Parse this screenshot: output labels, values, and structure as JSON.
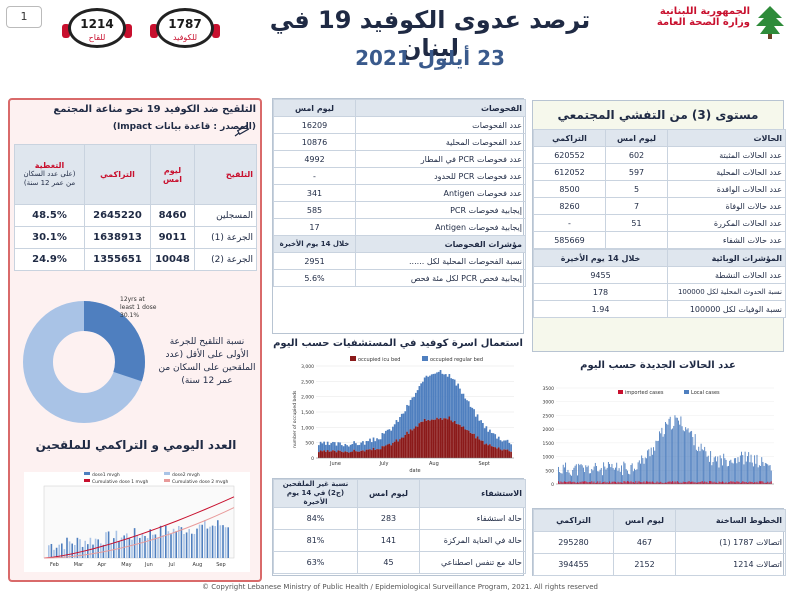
{
  "header": {
    "page_number": "1",
    "hotline_vaccine": {
      "number": "1214",
      "label": "للقاح"
    },
    "hotline_covid": {
      "number": "1787",
      "label": "للكوفيد"
    },
    "title": "ترصد عدوى الكوفيد 19 في لبنان",
    "date": "23 أيلول 2021",
    "ministry_line1": "الجمهورية اللبنانية",
    "ministry_line2": "وزارة الصحة العامة"
  },
  "vaccination": {
    "title": "التلقيح ضد الكوفيد 19  نحو مناعة المجتمع",
    "source": "(المصدر : قاعدة بيانات Impact)",
    "columns": [
      "التلقيح",
      "ليوم امس",
      "التراكمي",
      "التغطية"
    ],
    "coverage_note": "(على عدد السكان من عمر 12 سنة)",
    "rows": [
      {
        "label": "المسجلين",
        "yesterday": "8460",
        "cumulative": "2645220",
        "coverage": "48.5%"
      },
      {
        "label": "الجرعة (1)",
        "yesterday": "9011",
        "cumulative": "1638913",
        "coverage": "30.1%"
      },
      {
        "label": "الجرعة (2)",
        "yesterday": "10048",
        "cumulative": "1355651",
        "coverage": "24.9%"
      }
    ],
    "pie_label": "12yrs at least 1 dose 30.1%",
    "pie_caption": "نسبة التلقيح للجرعة الأولى على الأقل (عدد الملقحين على السكان من عمر 12 سنة)",
    "daily_title": "العدد اليومي و التراكمي للملقحين",
    "daily_legend": [
      "dose1 mvgh",
      "dose2 mvgh",
      "Cumulative dose 1 mvgh",
      "Cumulative dose 2 mvgh"
    ],
    "daily_months": [
      "Feb",
      "Mar",
      "Apr",
      "May",
      "Jun",
      "Jul",
      "Aug",
      "Sep"
    ]
  },
  "tests": {
    "col_label": "الفحوصات",
    "col_yesterday": "ليوم امس",
    "rows": [
      {
        "label": "عدد الفحوصات",
        "value": "16209"
      },
      {
        "label": "عدد الفحوصات المحلية",
        "value": "10876"
      },
      {
        "label": "عدد فحوصات PCR في المطار",
        "value": "4992"
      },
      {
        "label": "عدد فحوصات PCR للحدود",
        "value": "-"
      },
      {
        "label": "عدد فحوصات Antigen",
        "value": "341"
      },
      {
        "label": "إيجابية فحوصات PCR",
        "value": "585"
      },
      {
        "label": "إيجابية فحوصات Antigen",
        "value": "17"
      }
    ],
    "indicators_label": "مؤشرات الفحوصات",
    "indicators_period": "خلال 14 يوم الأخيرة",
    "indicators": [
      {
        "label": "نسبة الفحوصات  المحلية لكل ......",
        "value": "2951"
      },
      {
        "label": "إيجابية فحص PCR لكل مئة فحص",
        "value": "5.6%"
      }
    ]
  },
  "spread": {
    "title": "مستوى (3) من التفشي المجتمعي",
    "col_cases": "الحالات",
    "col_yesterday": "ليوم امس",
    "col_cumulative": "التراكمي",
    "rows": [
      {
        "label": "عدد الحالات المثبتة",
        "yesterday": "602",
        "cumulative": "620552"
      },
      {
        "label": "عدد الحالات المحلية",
        "yesterday": "597",
        "cumulative": "612052"
      },
      {
        "label": "عدد الحالات الوافدة",
        "yesterday": "5",
        "cumulative": "8500"
      },
      {
        "label": "عدد حالات الوفاة",
        "yesterday": "7",
        "cumulative": "8260"
      },
      {
        "label": "عدد الحالات المكررة",
        "yesterday": "51",
        "cumulative": "-"
      },
      {
        "label": "عدد حالات الشفاء",
        "yesterday": "",
        "cumulative": "585669"
      }
    ],
    "indicators_label": "المؤشرات الوبائية",
    "indicators_period": "خلال 14 يوم الأخيرة",
    "indicators": [
      {
        "label": "عدد الحالات النشطة",
        "value": "9455"
      },
      {
        "label": "نسبة الحدوث المحلية لكل 100000",
        "value": "178"
      },
      {
        "label": "نسبة الوفيات لكل 100000",
        "value": "1.94"
      }
    ]
  },
  "beds_chart": {
    "title": "استعمال اسرة كوفيد في المستشفيات حسب اليوم",
    "legend": [
      "occupied icu bed",
      "occupied regular bed"
    ],
    "ylabel": "number of occupied beds",
    "xlabel": "date",
    "months": [
      "June",
      "July",
      "Aug",
      "Sept"
    ],
    "y_ticks": [
      "3,000",
      "2,500",
      "2,000",
      "1,500",
      "1,000",
      "500",
      "0"
    ]
  },
  "cases_chart": {
    "title": "عدد الحالات الجديدة حسب اليوم",
    "legend": [
      "imported cases",
      "Local cases"
    ],
    "y_ticks": [
      "3500",
      "3000",
      "2500",
      "2000",
      "1500",
      "1000",
      "500",
      "0"
    ]
  },
  "hospital": {
    "col_label": "الاستشفاء",
    "col_yesterday": "ليوم امس",
    "col_ratio": "نسبة غير الملقحين (ج2) في 14 يوم الأخيرة",
    "rows": [
      {
        "label": "حالة استشفاء",
        "yesterday": "283",
        "ratio": "84%"
      },
      {
        "label": "حالة في العناية المركزة",
        "yesterday": "141",
        "ratio": "81%"
      },
      {
        "label": "حالة مع تنفس اصطناعي",
        "yesterday": "45",
        "ratio": "63%"
      }
    ]
  },
  "hotlines": {
    "col_label": "الخطوط الساخنة",
    "col_yesterday": "ليوم امس",
    "col_cumulative": "التراكمي",
    "rows": [
      {
        "label": "اتصالات 1787 (1)",
        "yesterday": "467",
        "cumulative": "295280"
      },
      {
        "label": "اتصالات 1214",
        "yesterday": "2152",
        "cumulative": "394455"
      }
    ]
  },
  "footer": "© Copyright Lebanese Ministry of Public Health / Epidemiological Surveillance Program, 2021. All rights reserved",
  "colors": {
    "navy": "#1f2a44",
    "red": "#c8102e",
    "blue": "#4f7fbf",
    "dark_red": "#8b1a1a",
    "vacc_border": "#d96a6a",
    "vacc_bg": "#fdf1f1"
  }
}
